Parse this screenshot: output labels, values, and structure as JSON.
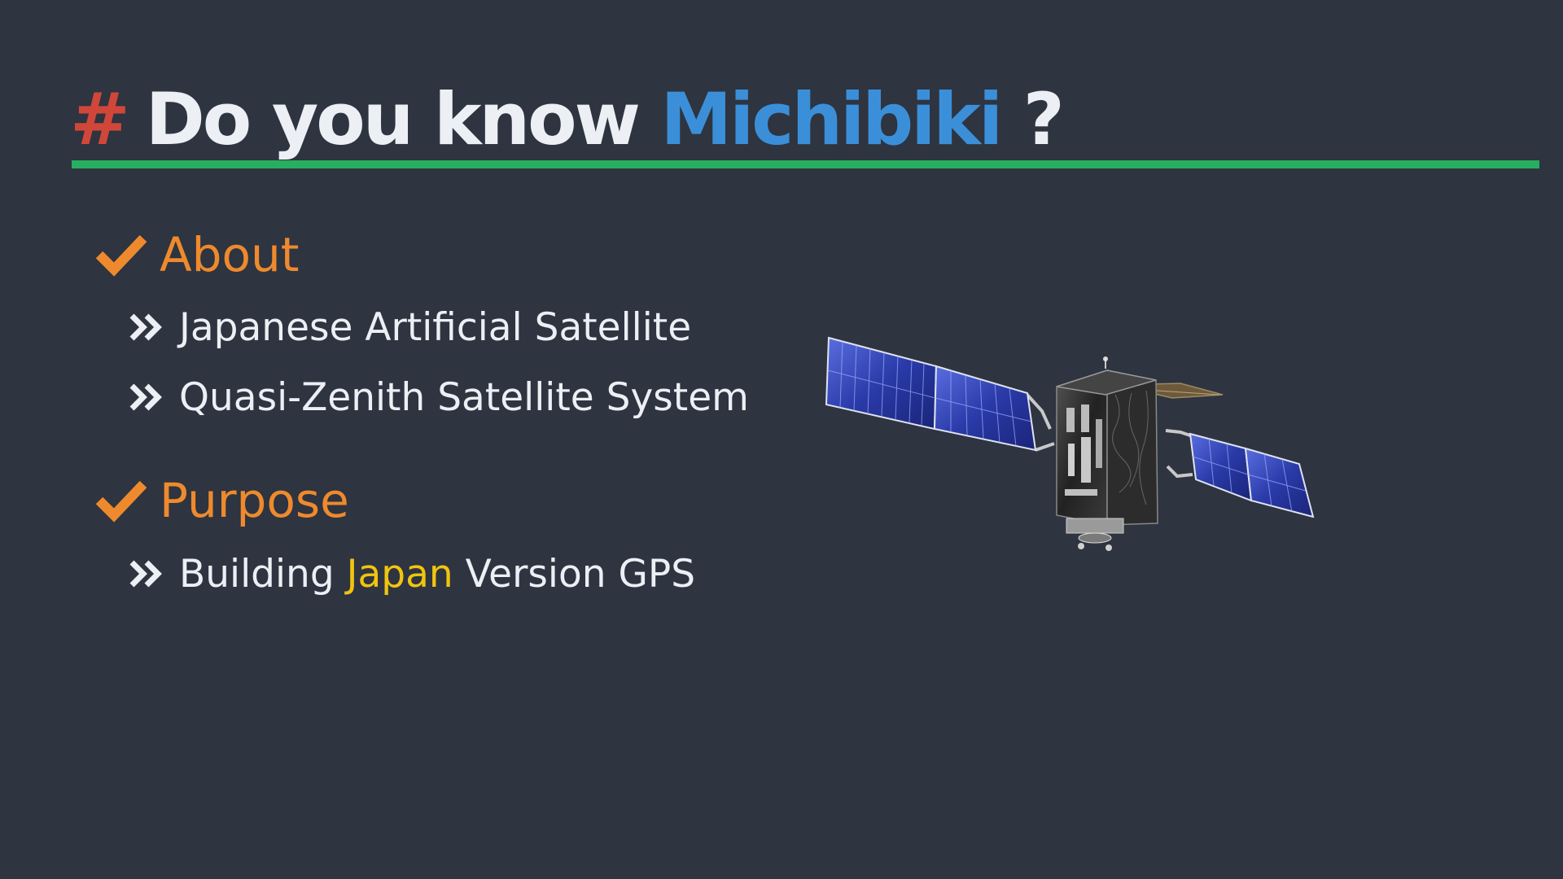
{
  "title": {
    "hash": "#",
    "prefix": "Do you know",
    "highlight": "Michibiki",
    "suffix": "?"
  },
  "sections": [
    {
      "heading": "About",
      "items": [
        {
          "text": "Japanese Artificial Satellite"
        },
        {
          "text": "Quasi-Zenith Satellite System"
        }
      ]
    },
    {
      "heading": "Purpose",
      "items": [
        {
          "before": "Building",
          "accent": "Japan",
          "after": "Version GPS"
        }
      ]
    }
  ],
  "colors": {
    "background": "#2e3440",
    "hash": "#d0473a",
    "highlight": "#3b8fd8",
    "rule": "#27ae60",
    "heading": "#ee8a2d",
    "accent": "#f1c40f",
    "text": "#eceff4"
  },
  "icons": {
    "heading": "check-icon",
    "bullet": "double-chevron-right-icon",
    "illustration": "satellite-illustration"
  }
}
